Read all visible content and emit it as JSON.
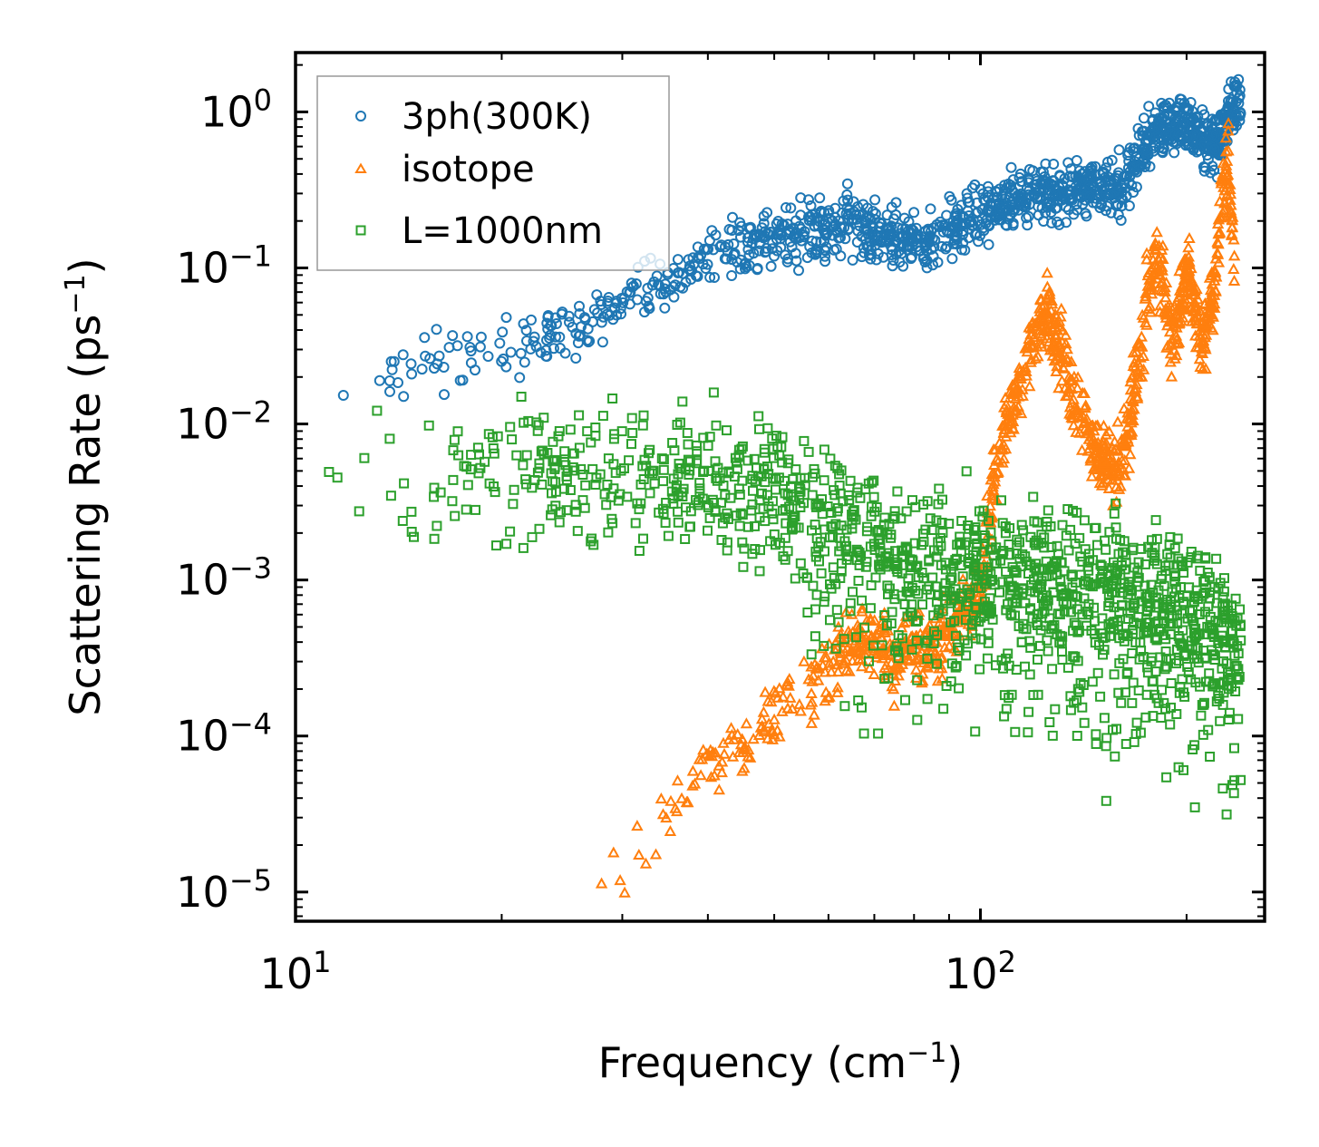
{
  "chart_data": {
    "type": "scatter",
    "xscale": "log",
    "yscale": "log",
    "xlim": [
      10,
      260
    ],
    "ylim": [
      6.5e-06,
      2.4
    ],
    "xlabel": "Frequency (cm",
    "xlabel_sup": "−1",
    "xlabel_close": ")",
    "ylabel": "Scattering Rate (ps",
    "ylabel_sup": "−1",
    "ylabel_close": ")",
    "x_ticks": [
      {
        "value": 10,
        "base": "10",
        "exp": "1"
      },
      {
        "value": 100,
        "base": "10",
        "exp": "2"
      }
    ],
    "y_ticks": [
      {
        "value": 1,
        "base": "10",
        "exp": "0"
      },
      {
        "value": 0.1,
        "base": "10",
        "exp": "−1"
      },
      {
        "value": 0.01,
        "base": "10",
        "exp": "−2"
      },
      {
        "value": 0.001,
        "base": "10",
        "exp": "−3"
      },
      {
        "value": 0.0001,
        "base": "10",
        "exp": "−4"
      },
      {
        "value": 1e-05,
        "base": "10",
        "exp": "−5"
      }
    ],
    "legend_position": "top-left",
    "series": [
      {
        "name": "3ph(300K)",
        "marker": "circle",
        "color": "#1f77b4",
        "trend_x": [
          11.0,
          13,
          16,
          20,
          25,
          30,
          35,
          40,
          45,
          50,
          55,
          60,
          65,
          70,
          75,
          80,
          85,
          90,
          95,
          100,
          110,
          120,
          130,
          140,
          150,
          160,
          170,
          180,
          190,
          200,
          210,
          220,
          230,
          240
        ],
        "trend_y": [
          0.01,
          0.022,
          0.025,
          0.028,
          0.04,
          0.06,
          0.085,
          0.11,
          0.13,
          0.15,
          0.17,
          0.18,
          0.19,
          0.17,
          0.15,
          0.16,
          0.14,
          0.17,
          0.19,
          0.22,
          0.26,
          0.3,
          0.3,
          0.32,
          0.33,
          0.32,
          0.55,
          0.75,
          0.85,
          0.9,
          0.7,
          0.6,
          0.9,
          1.2
        ],
        "scatter_dex": 0.18
      },
      {
        "name": "isotope",
        "marker": "triangle",
        "color": "#ff7f0e",
        "trend_x": [
          27,
          30,
          35,
          40,
          45,
          50,
          55,
          60,
          65,
          70,
          75,
          80,
          85,
          90,
          95,
          100,
          105,
          110,
          115,
          120,
          125,
          130,
          140,
          150,
          160,
          170,
          175,
          180,
          185,
          190,
          200,
          205,
          210,
          220,
          225,
          230,
          235
        ],
        "trend_y": [
          1e-05,
          1.6e-05,
          3.5e-05,
          6e-05,
          9e-05,
          0.00013,
          0.0002,
          0.00025,
          0.0004,
          0.0004,
          0.0003,
          0.0004,
          0.00035,
          0.0005,
          0.0006,
          0.0009,
          0.005,
          0.012,
          0.02,
          0.04,
          0.05,
          0.03,
          0.012,
          0.006,
          0.005,
          0.02,
          0.06,
          0.12,
          0.08,
          0.03,
          0.1,
          0.06,
          0.03,
          0.08,
          0.3,
          0.5,
          0.1
        ],
        "scatter_dex": 0.22
      },
      {
        "name": "L=1000nm",
        "marker": "square",
        "color": "#2ca02c",
        "trend_x": [
          11.0,
          13,
          16,
          20,
          25,
          30,
          35,
          40,
          45,
          50,
          55,
          60,
          65,
          70,
          75,
          80,
          85,
          90,
          95,
          100,
          110,
          120,
          130,
          140,
          150,
          160,
          170,
          180,
          190,
          200,
          210,
          220,
          230,
          240
        ],
        "trend_y": [
          0.0046,
          0.0048,
          0.0049,
          0.005,
          0.0048,
          0.0047,
          0.0045,
          0.0043,
          0.004,
          0.0035,
          0.003,
          0.0025,
          0.002,
          0.0016,
          0.0014,
          0.0013,
          0.0013,
          0.0012,
          0.0012,
          0.0012,
          0.0011,
          0.001,
          0.001,
          0.0009,
          0.0009,
          0.0008,
          0.0008,
          0.0007,
          0.0007,
          0.0006,
          0.0006,
          0.0005,
          0.0004,
          0.0004
        ],
        "scatter_dex": 0.45
      }
    ]
  }
}
